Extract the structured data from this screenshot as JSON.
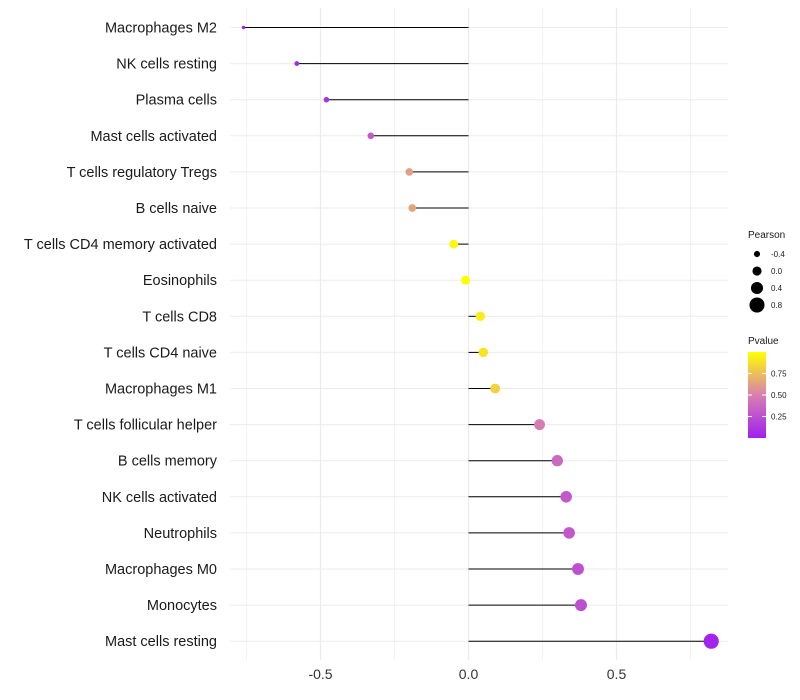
{
  "chart_data": {
    "type": "lollipop",
    "orientation": "horizontal",
    "xlabel": "",
    "ylabel": "",
    "xlim": [
      -0.76,
      0.83
    ],
    "x_ticks": [
      -0.5,
      0.0,
      0.5
    ],
    "x_tick_labels": [
      "-0.5",
      "0.0",
      "0.5"
    ],
    "grid": true,
    "categories": [
      "Macrophages M2",
      "NK cells resting",
      "Plasma cells",
      "Mast cells activated",
      "T cells regulatory  Tregs",
      "B cells naive",
      "T cells CD4 memory activated",
      "Eosinophils",
      "T cells CD8",
      "T cells CD4 naive",
      "Macrophages M1",
      "T cells follicular helper",
      "B cells memory",
      "NK cells activated",
      "Neutrophils",
      "Macrophages M0",
      "Monocytes",
      "Mast cells resting"
    ],
    "values": [
      -0.76,
      -0.58,
      -0.48,
      -0.33,
      -0.2,
      -0.19,
      -0.05,
      -0.01,
      0.04,
      0.05,
      0.09,
      0.24,
      0.3,
      0.33,
      0.34,
      0.37,
      0.38,
      0.82
    ],
    "pvalues": [
      0.02,
      0.05,
      0.1,
      0.3,
      0.62,
      0.65,
      0.97,
      1.0,
      0.93,
      0.9,
      0.82,
      0.48,
      0.38,
      0.3,
      0.3,
      0.25,
      0.24,
      0.02
    ],
    "legend": {
      "size_title": "Pearson",
      "size_items": [
        {
          "label": "-0.4",
          "value": -0.4
        },
        {
          "label": "0.0",
          "value": 0.0
        },
        {
          "label": "0.4",
          "value": 0.4
        },
        {
          "label": "0.8",
          "value": 0.8
        }
      ],
      "color_title": "Pvalue",
      "color_ticks": [
        {
          "label": "0.75",
          "value": 0.75
        },
        {
          "label": "0.50",
          "value": 0.5
        },
        {
          "label": "0.25",
          "value": 0.25
        }
      ],
      "color_range": [
        0.0,
        1.0
      ],
      "color_low": "#a020f0",
      "color_mid": "#d97fb0",
      "color_high": "#ffff00"
    },
    "stem_color": "#000000",
    "grid_color": "#ebebeb"
  }
}
